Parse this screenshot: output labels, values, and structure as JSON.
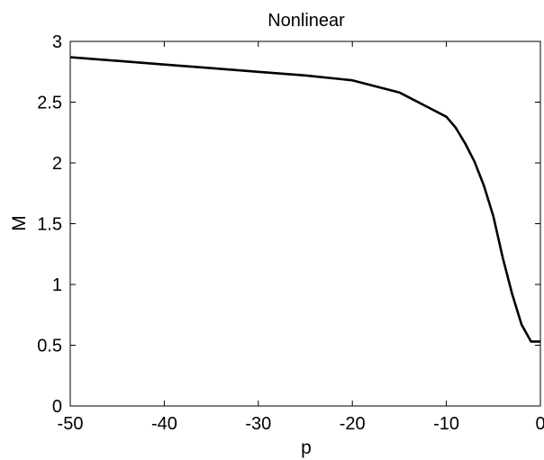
{
  "chart_data": {
    "type": "line",
    "title": "Nonlinear",
    "xlabel": "p",
    "ylabel": "M",
    "xlim": [
      -50,
      0
    ],
    "ylim": [
      0,
      3
    ],
    "xticks": [
      -50,
      -40,
      -30,
      -20,
      -10,
      0
    ],
    "yticks": [
      0,
      0.5,
      1,
      1.5,
      2,
      2.5,
      3
    ],
    "xtick_labels": [
      "-50",
      "-40",
      "-30",
      "-20",
      "-10",
      "0"
    ],
    "ytick_labels": [
      "0",
      "0.5",
      "1",
      "1.5",
      "2",
      "2.5",
      "3"
    ],
    "grid": false,
    "line_color": "#000000",
    "series": [
      {
        "x": [
          -50,
          -45,
          -40,
          -35,
          -30,
          -25,
          -20,
          -15,
          -12,
          -10,
          -9,
          -8,
          -7,
          -6,
          -5,
          -4,
          -3,
          -2,
          -1,
          0
        ],
        "y": [
          2.87,
          2.84,
          2.81,
          2.78,
          2.75,
          2.72,
          2.68,
          2.58,
          2.46,
          2.38,
          2.29,
          2.16,
          2.01,
          1.81,
          1.56,
          1.22,
          0.92,
          0.67,
          0.53,
          0.53
        ]
      }
    ]
  }
}
